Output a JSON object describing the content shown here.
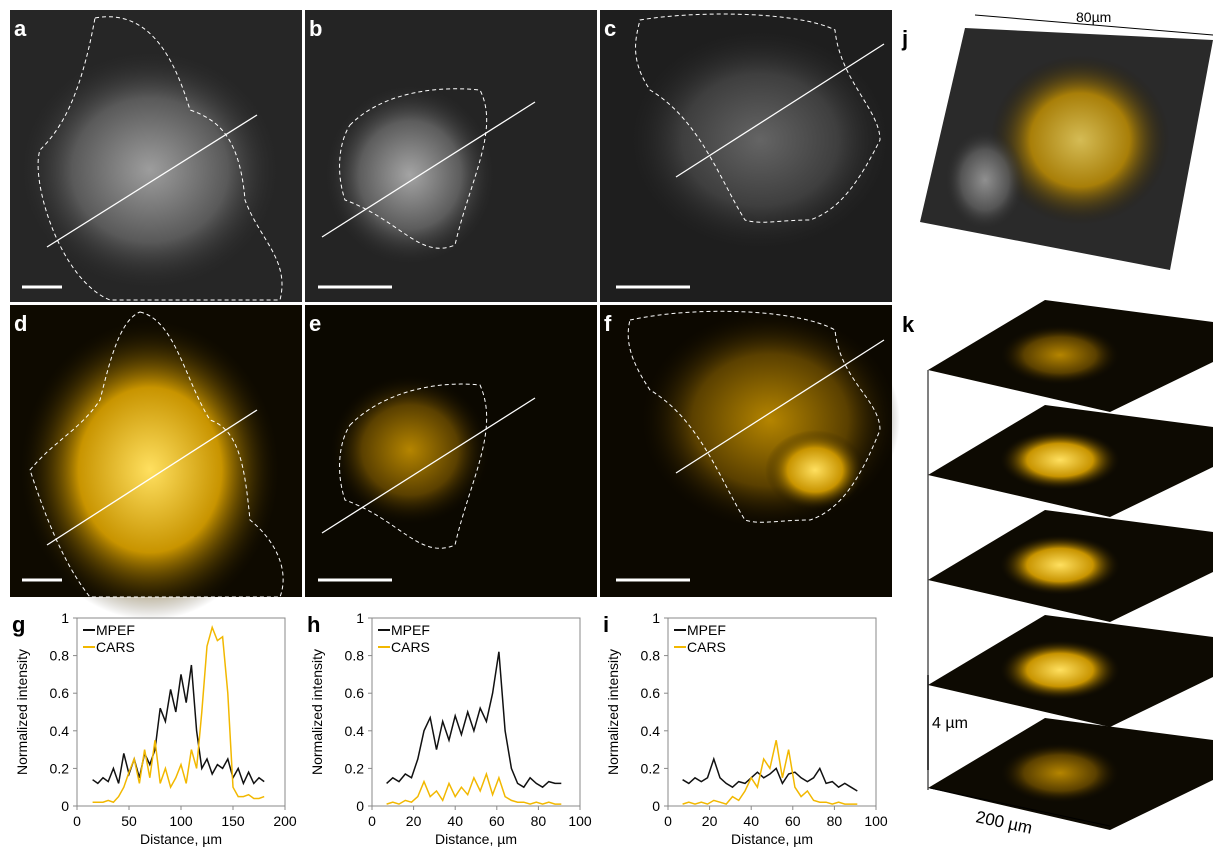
{
  "panels": {
    "a": "a",
    "b": "b",
    "c": "c",
    "d": "d",
    "e": "e",
    "f": "f",
    "j": "j",
    "k": "k"
  },
  "annotations": {
    "j_width": "80µm",
    "k_spacing": "4 µm",
    "k_width": "200 µm"
  },
  "chart_data": [
    {
      "type": "line",
      "panel": "g",
      "xlabel": "Distance, µm",
      "ylabel": "Normalized intensity",
      "legend": "upper left",
      "xlim": [
        0,
        200
      ],
      "xticks": [
        0,
        50,
        100,
        150,
        200
      ],
      "ylim": [
        0,
        1
      ],
      "yticks": [
        0,
        0.2,
        0.4,
        0.6,
        0.8,
        1
      ],
      "x": [
        15,
        20,
        25,
        30,
        35,
        40,
        45,
        50,
        55,
        60,
        65,
        70,
        75,
        80,
        85,
        90,
        95,
        100,
        105,
        110,
        115,
        120,
        125,
        130,
        135,
        140,
        145,
        150,
        155,
        160,
        165,
        170,
        175,
        180
      ],
      "series": [
        {
          "name": "MPEF",
          "color": "#111111",
          "values": [
            0.14,
            0.12,
            0.15,
            0.13,
            0.2,
            0.12,
            0.28,
            0.17,
            0.25,
            0.15,
            0.28,
            0.22,
            0.3,
            0.52,
            0.45,
            0.62,
            0.5,
            0.7,
            0.55,
            0.75,
            0.4,
            0.2,
            0.25,
            0.17,
            0.22,
            0.2,
            0.25,
            0.15,
            0.2,
            0.12,
            0.18,
            0.12,
            0.15,
            0.13
          ]
        },
        {
          "name": "CARS",
          "color": "#f2b800",
          "values": [
            0.02,
            0.02,
            0.02,
            0.03,
            0.02,
            0.05,
            0.1,
            0.18,
            0.25,
            0.12,
            0.3,
            0.15,
            0.35,
            0.12,
            0.2,
            0.1,
            0.15,
            0.22,
            0.12,
            0.3,
            0.2,
            0.5,
            0.85,
            0.95,
            0.88,
            0.9,
            0.6,
            0.1,
            0.05,
            0.05,
            0.06,
            0.04,
            0.04,
            0.05
          ]
        }
      ]
    },
    {
      "type": "line",
      "panel": "h",
      "xlabel": "Distance, µm",
      "ylabel": "Normalized intensity",
      "legend": "upper left",
      "xlim": [
        0,
        100
      ],
      "xticks": [
        0,
        20,
        40,
        60,
        80,
        100
      ],
      "ylim": [
        0,
        1
      ],
      "yticks": [
        0,
        0.2,
        0.4,
        0.6,
        0.8,
        1
      ],
      "x": [
        7,
        10,
        13,
        16,
        19,
        22,
        25,
        28,
        31,
        34,
        37,
        40,
        43,
        46,
        49,
        52,
        55,
        58,
        61,
        64,
        67,
        70,
        73,
        76,
        79,
        82,
        85,
        88,
        91
      ],
      "series": [
        {
          "name": "MPEF",
          "color": "#111111",
          "values": [
            0.12,
            0.15,
            0.13,
            0.17,
            0.15,
            0.25,
            0.4,
            0.47,
            0.3,
            0.45,
            0.35,
            0.48,
            0.38,
            0.5,
            0.4,
            0.52,
            0.45,
            0.6,
            0.82,
            0.4,
            0.2,
            0.12,
            0.1,
            0.15,
            0.12,
            0.1,
            0.13,
            0.12,
            0.12
          ]
        },
        {
          "name": "CARS",
          "color": "#f2b800",
          "values": [
            0.01,
            0.02,
            0.01,
            0.03,
            0.02,
            0.05,
            0.13,
            0.05,
            0.08,
            0.03,
            0.12,
            0.05,
            0.1,
            0.06,
            0.15,
            0.08,
            0.17,
            0.06,
            0.15,
            0.05,
            0.03,
            0.02,
            0.02,
            0.01,
            0.02,
            0.01,
            0.02,
            0.01,
            0.01
          ]
        }
      ]
    },
    {
      "type": "line",
      "panel": "i",
      "xlabel": "Distance, µm",
      "ylabel": "Normalized intensity",
      "legend": "upper left",
      "xlim": [
        0,
        100
      ],
      "xticks": [
        0,
        20,
        40,
        60,
        80,
        100
      ],
      "ylim": [
        0,
        1
      ],
      "yticks": [
        0,
        0.2,
        0.4,
        0.6,
        0.8,
        1
      ],
      "x": [
        7,
        10,
        13,
        16,
        19,
        22,
        25,
        28,
        31,
        34,
        37,
        40,
        43,
        46,
        49,
        52,
        55,
        58,
        61,
        64,
        67,
        70,
        73,
        76,
        79,
        82,
        85,
        88,
        91
      ],
      "series": [
        {
          "name": "MPEF",
          "color": "#111111",
          "values": [
            0.14,
            0.12,
            0.15,
            0.13,
            0.15,
            0.25,
            0.15,
            0.12,
            0.1,
            0.13,
            0.12,
            0.15,
            0.18,
            0.15,
            0.17,
            0.2,
            0.12,
            0.17,
            0.18,
            0.15,
            0.13,
            0.15,
            0.2,
            0.12,
            0.13,
            0.1,
            0.12,
            0.1,
            0.08
          ]
        },
        {
          "name": "CARS",
          "color": "#f2b800",
          "values": [
            0.01,
            0.02,
            0.01,
            0.02,
            0.01,
            0.03,
            0.02,
            0.01,
            0.05,
            0.03,
            0.08,
            0.15,
            0.1,
            0.25,
            0.2,
            0.35,
            0.15,
            0.3,
            0.1,
            0.05,
            0.08,
            0.03,
            0.02,
            0.02,
            0.01,
            0.02,
            0.01,
            0.01,
            0.01
          ]
        }
      ]
    }
  ]
}
